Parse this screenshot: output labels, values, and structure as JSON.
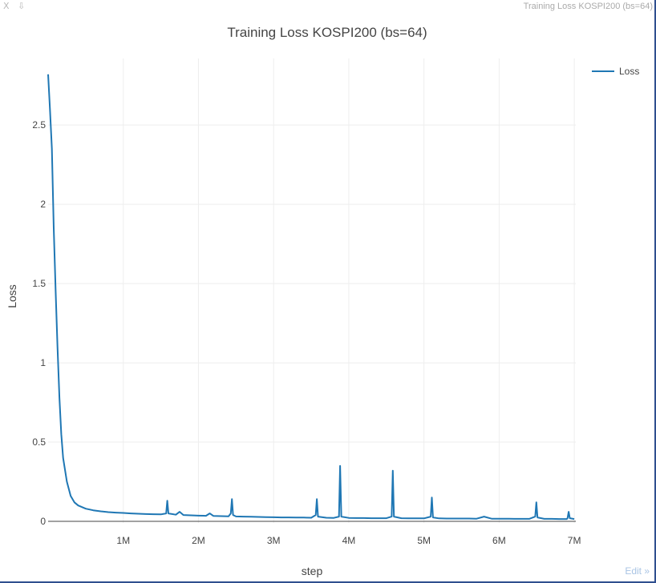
{
  "window": {
    "close_glyph": "X",
    "pin_glyph": "⇩",
    "title": "Training Loss KOSPI200 (bs=64)"
  },
  "edit_label": "Edit »",
  "colors": {
    "series": "#1f77b4",
    "grid": "#eeeeee",
    "zero_line": "#444444"
  },
  "chart_data": {
    "type": "line",
    "title": "Training Loss KOSPI200 (bs=64)",
    "xlabel": "step",
    "ylabel": "Loss",
    "xlim": [
      0,
      7020000
    ],
    "ylim": [
      -0.01,
      2.92
    ],
    "x_ticks": [
      1000000,
      2000000,
      3000000,
      4000000,
      5000000,
      6000000,
      7000000
    ],
    "x_tick_labels": [
      "1M",
      "2M",
      "3M",
      "4M",
      "5M",
      "6M",
      "7M"
    ],
    "y_ticks": [
      0,
      0.5,
      1,
      1.5,
      2,
      2.5
    ],
    "y_tick_labels": [
      "0",
      "0.5",
      "1",
      "1.5",
      "2",
      "2.5"
    ],
    "grid": true,
    "legend_position": "top-right",
    "series": [
      {
        "name": "Loss",
        "color": "#1f77b4",
        "x": [
          0,
          25000,
          50000,
          75000,
          100000,
          125000,
          150000,
          175000,
          200000,
          250000,
          300000,
          350000,
          400000,
          450000,
          500000,
          600000,
          700000,
          800000,
          900000,
          1000000,
          1100000,
          1200000,
          1300000,
          1400000,
          1500000,
          1570000,
          1585000,
          1600000,
          1700000,
          1750000,
          1800000,
          1900000,
          2000000,
          2100000,
          2150000,
          2200000,
          2300000,
          2400000,
          2430000,
          2445000,
          2460000,
          2500000,
          2600000,
          2700000,
          2800000,
          2900000,
          3000000,
          3100000,
          3200000,
          3300000,
          3400000,
          3500000,
          3560000,
          3575000,
          3590000,
          3700000,
          3800000,
          3870000,
          3885000,
          3900000,
          4000000,
          4100000,
          4200000,
          4300000,
          4400000,
          4500000,
          4570000,
          4585000,
          4600000,
          4700000,
          4800000,
          4900000,
          5000000,
          5090000,
          5105000,
          5120000,
          5200000,
          5300000,
          5400000,
          5500000,
          5600000,
          5700000,
          5800000,
          5900000,
          6000000,
          6100000,
          6200000,
          6300000,
          6400000,
          6480000,
          6495000,
          6510000,
          6600000,
          6700000,
          6800000,
          6900000,
          6910000,
          6925000,
          6940000,
          7000000
        ],
        "y": [
          2.82,
          2.6,
          2.35,
          1.85,
          1.45,
          1.1,
          0.78,
          0.55,
          0.4,
          0.25,
          0.16,
          0.12,
          0.1,
          0.09,
          0.08,
          0.07,
          0.063,
          0.058,
          0.055,
          0.053,
          0.05,
          0.048,
          0.046,
          0.045,
          0.044,
          0.05,
          0.13,
          0.05,
          0.042,
          0.06,
          0.04,
          0.038,
          0.036,
          0.035,
          0.05,
          0.034,
          0.033,
          0.032,
          0.05,
          0.14,
          0.04,
          0.031,
          0.03,
          0.029,
          0.028,
          0.027,
          0.026,
          0.025,
          0.025,
          0.024,
          0.024,
          0.023,
          0.04,
          0.14,
          0.03,
          0.023,
          0.022,
          0.03,
          0.35,
          0.03,
          0.022,
          0.021,
          0.021,
          0.02,
          0.02,
          0.02,
          0.03,
          0.32,
          0.03,
          0.02,
          0.019,
          0.019,
          0.019,
          0.03,
          0.15,
          0.025,
          0.019,
          0.018,
          0.018,
          0.018,
          0.018,
          0.017,
          0.03,
          0.017,
          0.017,
          0.017,
          0.016,
          0.016,
          0.016,
          0.03,
          0.12,
          0.025,
          0.016,
          0.016,
          0.015,
          0.015,
          0.02,
          0.06,
          0.02,
          0.015
        ]
      }
    ]
  }
}
